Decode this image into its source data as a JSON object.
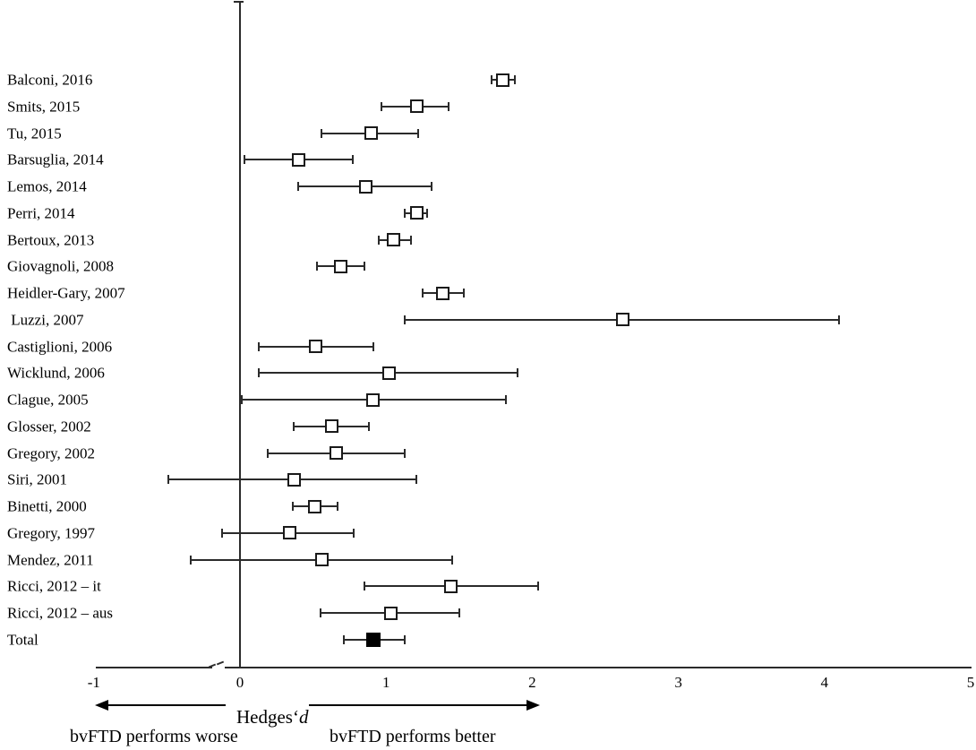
{
  "chart_data": {
    "type": "scatter",
    "subtype": "forest-plot",
    "title": "",
    "xlabel_main": "Hedges‘",
    "xlabel_italic": "d",
    "xlim": [
      -1,
      5
    ],
    "xticks": [
      "-1",
      "0",
      "1",
      "2",
      "3",
      "4",
      "5"
    ],
    "zero_reference_line": 0,
    "grid": false,
    "direction_left_label": "bvFTD performs worse",
    "direction_right_label": "bvFTD performs better",
    "studies": [
      {
        "label": "Balconi, 2016",
        "d": 1.8,
        "ci_low": 1.72,
        "ci_high": 1.88,
        "filled": false
      },
      {
        "label": "Smits, 2015",
        "d": 1.21,
        "ci_low": 0.97,
        "ci_high": 1.43,
        "filled": false
      },
      {
        "label": "Tu, 2015",
        "d": 0.9,
        "ci_low": 0.56,
        "ci_high": 1.22,
        "filled": false
      },
      {
        "label": "Barsuglia, 2014",
        "d": 0.4,
        "ci_low": 0.03,
        "ci_high": 0.77,
        "filled": false
      },
      {
        "label": "Lemos, 2014",
        "d": 0.86,
        "ci_low": 0.4,
        "ci_high": 1.31,
        "filled": false
      },
      {
        "label": "Perri, 2014",
        "d": 1.21,
        "ci_low": 1.13,
        "ci_high": 1.28,
        "filled": false
      },
      {
        "label": "Bertoux, 2013",
        "d": 1.05,
        "ci_low": 0.95,
        "ci_high": 1.17,
        "filled": false
      },
      {
        "label": "Giovagnoli, 2008",
        "d": 0.69,
        "ci_low": 0.53,
        "ci_high": 0.85,
        "filled": false
      },
      {
        "label": "Heidler-Gary, 2007",
        "d": 1.39,
        "ci_low": 1.25,
        "ci_high": 1.53,
        "filled": false
      },
      {
        "label": " Luzzi, 2007",
        "d": 2.62,
        "ci_low": 1.13,
        "ci_high": 4.1,
        "filled": false
      },
      {
        "label": "Castiglioni, 2006",
        "d": 0.52,
        "ci_low": 0.13,
        "ci_high": 0.91,
        "filled": false
      },
      {
        "label": "Wicklund, 2006",
        "d": 1.02,
        "ci_low": 0.13,
        "ci_high": 1.9,
        "filled": false
      },
      {
        "label": "Clague, 2005",
        "d": 0.91,
        "ci_low": 0.01,
        "ci_high": 1.82,
        "filled": false
      },
      {
        "label": "Glosser, 2002",
        "d": 0.63,
        "ci_low": 0.37,
        "ci_high": 0.88,
        "filled": false
      },
      {
        "label": "Gregory, 2002",
        "d": 0.66,
        "ci_low": 0.19,
        "ci_high": 1.13,
        "filled": false
      },
      {
        "label": "Siri, 2001",
        "d": 0.37,
        "ci_low": -0.49,
        "ci_high": 1.21,
        "filled": false
      },
      {
        "label": "Binetti, 2000",
        "d": 0.51,
        "ci_low": 0.36,
        "ci_high": 0.67,
        "filled": false
      },
      {
        "label": "Gregory, 1997",
        "d": 0.34,
        "ci_low": -0.12,
        "ci_high": 0.78,
        "filled": false
      },
      {
        "label": "Mendez, 2011",
        "d": 0.56,
        "ci_low": -0.34,
        "ci_high": 1.45,
        "filled": false
      },
      {
        "label": "Ricci, 2012 – it",
        "d": 1.44,
        "ci_low": 0.85,
        "ci_high": 2.04,
        "filled": false
      },
      {
        "label": "Ricci, 2012 – aus",
        "d": 1.03,
        "ci_low": 0.55,
        "ci_high": 1.5,
        "filled": false
      },
      {
        "label": "Total",
        "d": 0.91,
        "ci_low": 0.71,
        "ci_high": 1.13,
        "filled": true
      }
    ],
    "colors": {
      "line": "#2b2b2b",
      "marker_border": "#1a1a1a",
      "marker_fill_open": "#ffffff",
      "marker_fill_total": "#000000",
      "text": "#000000"
    },
    "legend": null
  }
}
